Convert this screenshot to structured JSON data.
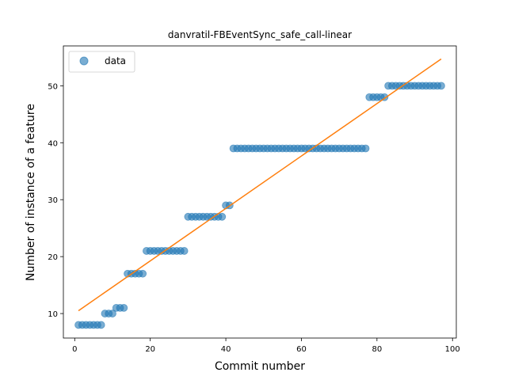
{
  "chart_data": {
    "type": "scatter",
    "title": "danvratil-FBEventSync_safe_call-linear",
    "xlabel": "Commit number",
    "ylabel": "Number of instance of a feature",
    "xlim": [
      -3,
      101
    ],
    "ylim": [
      5.7,
      57
    ],
    "xticks": [
      0,
      20,
      40,
      60,
      80,
      100
    ],
    "yticks": [
      10,
      20,
      30,
      40,
      50
    ],
    "grid": false,
    "legend_position": "upper-left",
    "colors": {
      "data": "#1f77b4",
      "fit": "#ff7f0e"
    },
    "series": [
      {
        "name": "data",
        "kind": "points",
        "x": [
          1,
          2,
          3,
          4,
          5,
          6,
          7,
          8,
          9,
          10,
          11,
          12,
          13,
          14,
          15,
          16,
          17,
          18,
          19,
          20,
          21,
          22,
          23,
          24,
          25,
          26,
          27,
          28,
          29,
          30,
          31,
          32,
          33,
          34,
          35,
          36,
          37,
          38,
          39,
          40,
          41,
          42,
          43,
          44,
          45,
          46,
          47,
          48,
          49,
          50,
          51,
          52,
          53,
          54,
          55,
          56,
          57,
          58,
          59,
          60,
          61,
          62,
          63,
          64,
          65,
          66,
          67,
          68,
          69,
          70,
          71,
          72,
          73,
          74,
          75,
          76,
          77,
          78,
          79,
          80,
          81,
          82,
          83,
          84,
          85,
          86,
          87,
          88,
          89,
          90,
          91,
          92,
          93,
          94,
          95,
          96,
          97
        ],
        "y": [
          8,
          8,
          8,
          8,
          8,
          8,
          8,
          10,
          10,
          10,
          11,
          11,
          11,
          17,
          17,
          17,
          17,
          17,
          21,
          21,
          21,
          21,
          21,
          21,
          21,
          21,
          21,
          21,
          21,
          27,
          27,
          27,
          27,
          27,
          27,
          27,
          27,
          27,
          27,
          29,
          29,
          39,
          39,
          39,
          39,
          39,
          39,
          39,
          39,
          39,
          39,
          39,
          39,
          39,
          39,
          39,
          39,
          39,
          39,
          39,
          39,
          39,
          39,
          39,
          39,
          39,
          39,
          39,
          39,
          39,
          39,
          39,
          39,
          39,
          39,
          39,
          39,
          48,
          48,
          48,
          48,
          48,
          50,
          50,
          50,
          50,
          50,
          50,
          50,
          50,
          50,
          50,
          50,
          50,
          50,
          50,
          50
        ]
      },
      {
        "kind": "line",
        "x": [
          1,
          97
        ],
        "y": [
          10.5,
          54.7
        ]
      }
    ]
  }
}
